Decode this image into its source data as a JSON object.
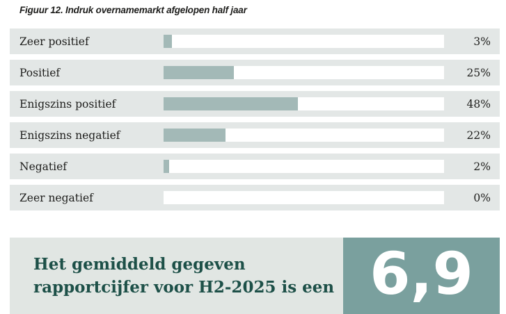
{
  "figure": {
    "title": "Figuur 12. Indruk overnamemarkt afgelopen half jaar"
  },
  "chart_data": {
    "type": "bar",
    "orientation": "horizontal",
    "title": "Figuur 12. Indruk overnamemarkt afgelopen half jaar",
    "categories": [
      "Zeer positief",
      "Positief",
      "Enigszins positief",
      "Enigszins negatief",
      "Negatief",
      "Zeer negatief"
    ],
    "values": [
      3,
      25,
      48,
      22,
      2,
      0
    ],
    "value_labels": [
      "3%",
      "25%",
      "48%",
      "22%",
      "2%",
      "0%"
    ],
    "xlim": [
      0,
      100
    ],
    "grid": false,
    "legend": false,
    "bar_color": "#a3b9b7",
    "track_color": "#ffffff",
    "row_background": "#e3e7e6"
  },
  "banner": {
    "text": "Het gemiddeld gegeven rapportcijfer voor H2-2025 is een",
    "lines": [
      "Het gemiddeld gegeven",
      "rapportcijfer voor H2-2025 is een"
    ],
    "score": "6,9",
    "background": "#e1e6e3",
    "score_background": "#7aa09e",
    "text_color": "#1d5048"
  }
}
